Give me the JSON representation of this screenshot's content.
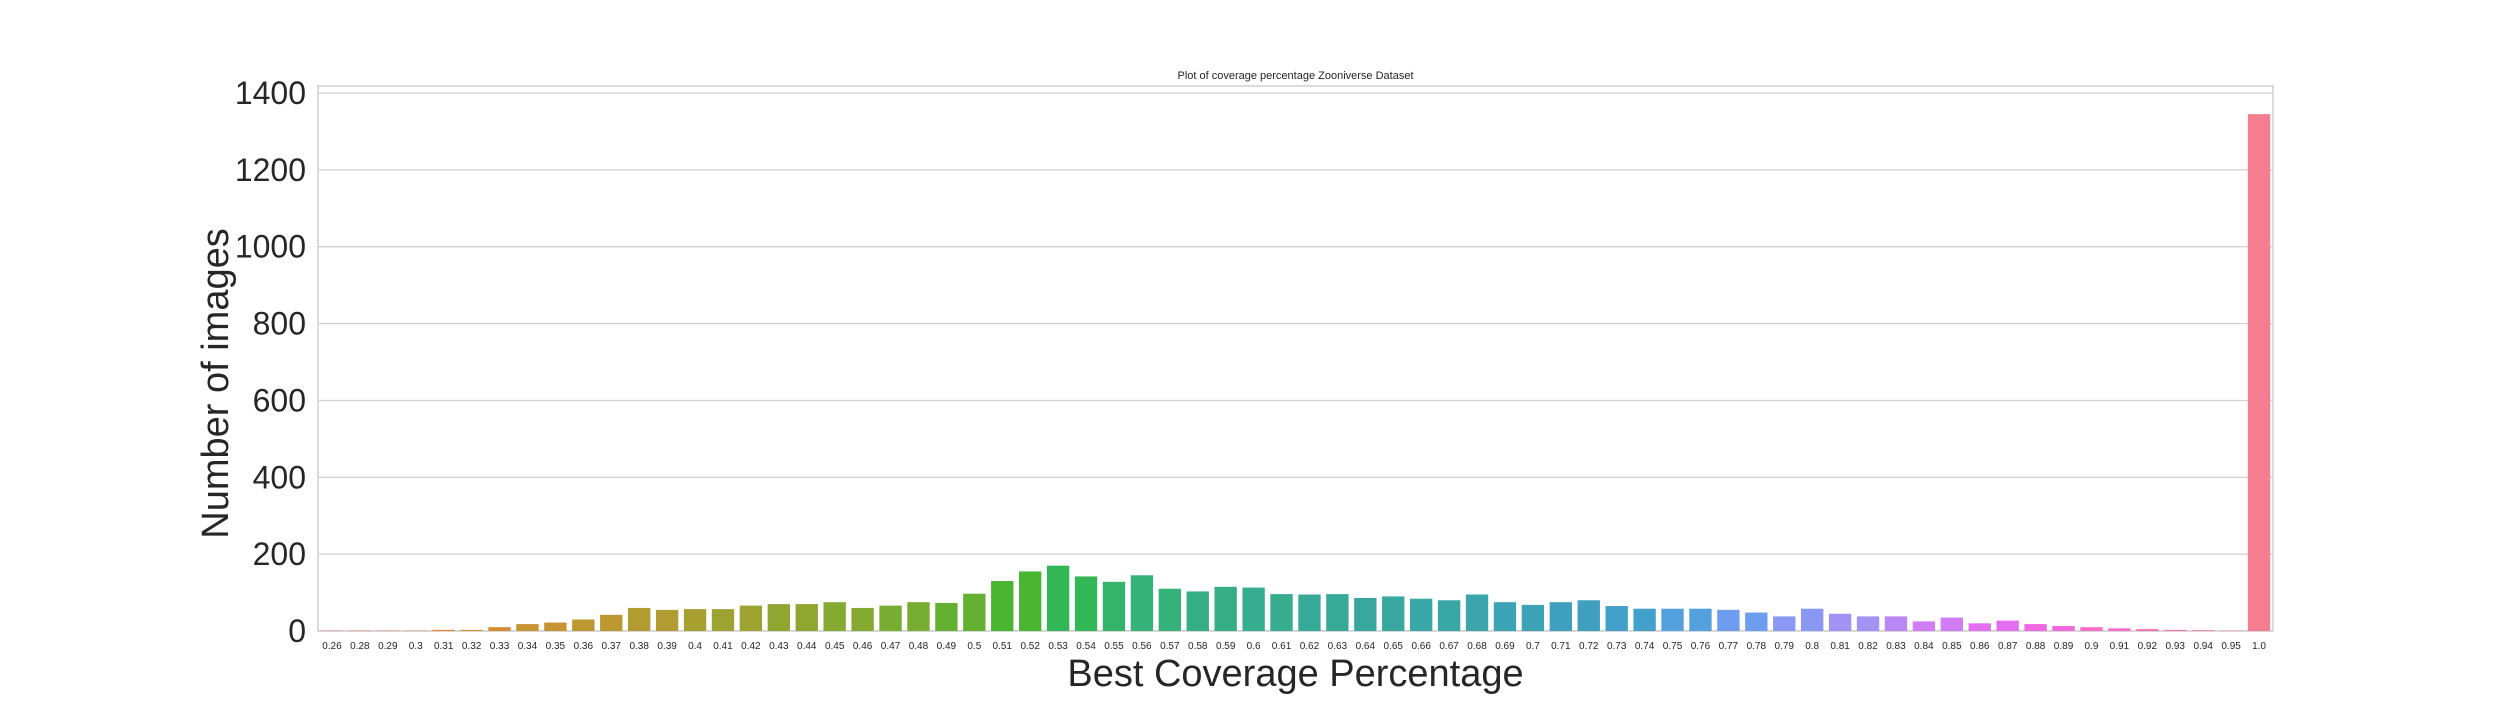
{
  "chart_data": {
    "type": "bar",
    "title": "Plot of coverage percentage Zooniverse Dataset",
    "xlabel": "Best Coverage Percentage",
    "ylabel": "Number of images",
    "ylim": [
      0,
      1400
    ],
    "yticks": [
      "0",
      "200",
      "400",
      "600",
      "800",
      "1000",
      "1200",
      "1400"
    ],
    "grid": true,
    "categories": [
      "0.26",
      "0.28",
      "0.29",
      "0.3",
      "0.31",
      "0.32",
      "0.33",
      "0.34",
      "0.35",
      "0.36",
      "0.37",
      "0.38",
      "0.39",
      "0.4",
      "0.41",
      "0.42",
      "0.43",
      "0.44",
      "0.45",
      "0.46",
      "0.47",
      "0.48",
      "0.49",
      "0.5",
      "0.51",
      "0.52",
      "0.53",
      "0.54",
      "0.55",
      "0.56",
      "0.57",
      "0.58",
      "0.59",
      "0.6",
      "0.61",
      "0.62",
      "0.63",
      "0.64",
      "0.65",
      "0.66",
      "0.67",
      "0.68",
      "0.69",
      "0.7",
      "0.71",
      "0.72",
      "0.73",
      "0.74",
      "0.75",
      "0.76",
      "0.77",
      "0.78",
      "0.79",
      "0.8",
      "0.81",
      "0.82",
      "0.83",
      "0.84",
      "0.85",
      "0.86",
      "0.87",
      "0.88",
      "0.89",
      "0.9",
      "0.91",
      "0.92",
      "0.93",
      "0.94",
      "0.95",
      "1.0"
    ],
    "values": [
      1,
      1,
      1,
      1,
      3,
      3,
      10,
      18,
      22,
      30,
      42,
      60,
      55,
      57,
      57,
      66,
      70,
      70,
      75,
      60,
      66,
      75,
      73,
      97,
      130,
      155,
      170,
      142,
      128,
      145,
      110,
      103,
      115,
      113,
      96,
      95,
      96,
      86,
      90,
      84,
      80,
      95,
      75,
      68,
      75,
      80,
      65,
      58,
      58,
      58,
      55,
      48,
      38,
      58,
      45,
      38,
      38,
      25,
      35,
      20,
      27,
      18,
      13,
      10,
      7,
      5,
      3,
      2,
      1,
      1345
    ],
    "colors": [
      "#f77189",
      "#f47a59",
      "#e68530",
      "#d58c32",
      "#c89332",
      "#bd9831",
      "#b29c31",
      "#a7a031",
      "#9ca331",
      "#91a631",
      "#85aa31",
      "#77ad31",
      "#64b131",
      "#4ab531",
      "#33b656",
      "#34b36b",
      "#35b17a",
      "#36ae85",
      "#36ad8e",
      "#37aa97",
      "#38a89e",
      "#39a7a5",
      "#3ba4ad",
      "#3ca2b5",
      "#3e9fbe",
      "#43a0cb",
      "#53a0dd",
      "#6e9df0",
      "#8a98f4",
      "#a292f4",
      "#ba87f4",
      "#d07cf4",
      "#e16ff0",
      "#f168e0",
      "#f56ec8",
      "#f574b2",
      "#f5799f",
      "#f47d90"
    ]
  }
}
